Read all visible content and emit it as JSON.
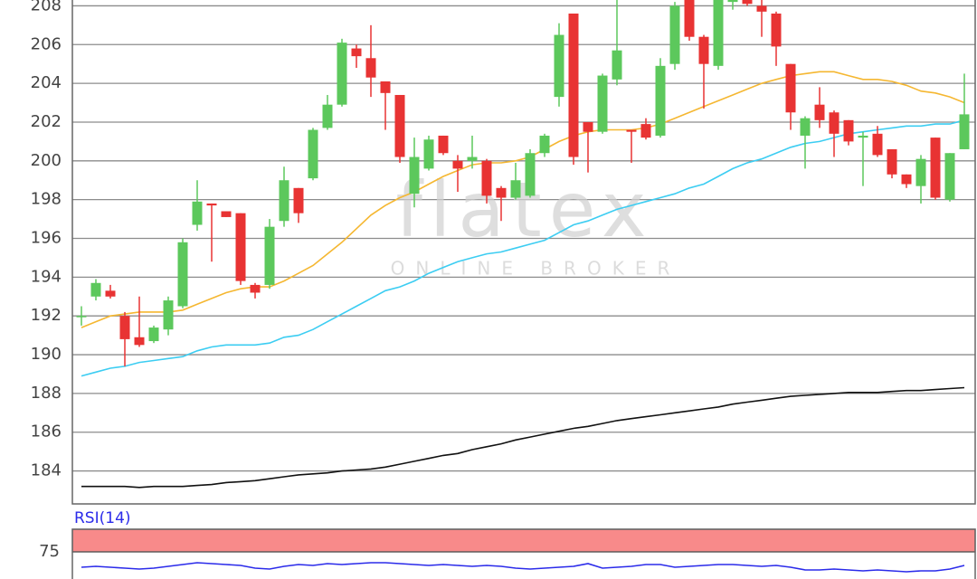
{
  "chart_data": [
    {
      "type": "candlestick",
      "watermark": {
        "brand": "flatex",
        "tagline": "ONLINE BROKER"
      },
      "categories": [
        null,
        null,
        null,
        null,
        null,
        null,
        null,
        null,
        null,
        null,
        null,
        null,
        null,
        null,
        null,
        null,
        null,
        null,
        null,
        null,
        null,
        null,
        null,
        null,
        null,
        null,
        null,
        null,
        null,
        null,
        null,
        null,
        null,
        null,
        null,
        null,
        null,
        null,
        null,
        null,
        null,
        null,
        null,
        null,
        null,
        null,
        null,
        null,
        null,
        null,
        null,
        null,
        null,
        null,
        null,
        null,
        null,
        null,
        null,
        null,
        null,
        null
      ],
      "open": [
        192,
        193,
        193.3,
        192,
        190.9,
        190.7,
        191.3,
        192.5,
        196.7,
        197.8,
        197.4,
        197.3,
        193.6,
        193.6,
        196.9,
        198.6,
        199.1,
        201.7,
        202.9,
        205.8,
        205.3,
        204.1,
        203.4,
        198.3,
        199.6,
        201.3,
        200,
        200,
        200,
        198.6,
        198.1,
        198.2,
        200.4,
        203.3,
        207.6,
        202,
        201.5,
        204.2,
        201.6,
        201.9,
        201.3,
        205,
        208.3,
        206.4,
        204.9,
        208.2,
        208.3,
        208,
        207.6,
        205,
        201.3,
        202.9,
        202.5,
        202.1,
        201.2,
        201.4,
        200.6,
        199.3,
        198.7,
        201.2,
        198,
        200.6
      ],
      "high": [
        192.5,
        193.9,
        193.6,
        192.2,
        193,
        191.5,
        193,
        196,
        199,
        197.8,
        197.4,
        197.3,
        193.7,
        197,
        199.7,
        198.6,
        201.7,
        203.4,
        206.3,
        206,
        207,
        204.1,
        203.4,
        201.2,
        201.3,
        201.3,
        200.3,
        201.3,
        200.1,
        198.7,
        199.9,
        200.6,
        201.4,
        207.1,
        207.6,
        202,
        204.5,
        208.3,
        201.6,
        202.2,
        205.3,
        208.2,
        208.3,
        206.5,
        208.3,
        208.3,
        208.3,
        208.3,
        207.7,
        205,
        202.3,
        203.8,
        202.6,
        202.1,
        201.5,
        201.8,
        200.6,
        199.3,
        200.3,
        201.2,
        200.4,
        204.5
      ],
      "low": [
        191.5,
        192.8,
        192.9,
        189.4,
        190.4,
        190.6,
        191,
        192.4,
        196.4,
        194.8,
        197.1,
        193.6,
        192.9,
        193.4,
        196.6,
        196.8,
        199,
        201.6,
        202.8,
        204.8,
        203.3,
        201.6,
        199.9,
        197.6,
        199.5,
        200.3,
        198.4,
        199.6,
        197.8,
        196.9,
        198,
        198.1,
        200.2,
        202.8,
        199.8,
        199.4,
        201.4,
        203.9,
        199.9,
        201.1,
        201.2,
        204.7,
        206.2,
        202.7,
        204.7,
        207.8,
        208,
        206.4,
        204.9,
        201.6,
        199.6,
        201.7,
        200.2,
        200.8,
        198.7,
        200.2,
        199.1,
        198.6,
        197.8,
        198,
        197.9,
        200.6
      ],
      "close": [
        192,
        193.7,
        193,
        190.8,
        190.5,
        191.4,
        192.8,
        195.8,
        197.9,
        197.7,
        197.1,
        193.8,
        193.2,
        196.6,
        199,
        197.3,
        201.6,
        202.9,
        206.1,
        205.4,
        204.3,
        203.5,
        200.2,
        200.2,
        201.1,
        200.4,
        199.6,
        200.2,
        198.2,
        198.1,
        199,
        200.4,
        201.3,
        206.5,
        200.2,
        201.5,
        204.4,
        205.7,
        201.5,
        201.2,
        204.9,
        208,
        206.4,
        205,
        208.3,
        208.3,
        208.1,
        207.7,
        205.9,
        202.5,
        202.2,
        202.1,
        201.4,
        201,
        201.3,
        200.3,
        199.3,
        198.8,
        200.1,
        198.1,
        200.4,
        202.4
      ],
      "up_color": "#5cc85c",
      "down_color": "#e83333",
      "overlays": [
        {
          "color": "#f5b731",
          "values": [
            191.4,
            191.7,
            192,
            192.1,
            192.2,
            192.2,
            192.2,
            192.3,
            192.6,
            192.9,
            193.2,
            193.4,
            193.5,
            193.5,
            193.8,
            194.2,
            194.6,
            195.2,
            195.8,
            196.5,
            197.2,
            197.7,
            198.1,
            198.4,
            198.8,
            199.2,
            199.5,
            199.8,
            199.9,
            199.9,
            200,
            200.2,
            200.6,
            201,
            201.3,
            201.5,
            201.6,
            201.6,
            201.6,
            201.7,
            201.9,
            202.2,
            202.5,
            202.8,
            203.1,
            203.4,
            203.7,
            204,
            204.2,
            204.4,
            204.5,
            204.6,
            204.6,
            204.4,
            204.2,
            204.2,
            204.1,
            203.9,
            203.6,
            203.5,
            203.3,
            203
          ]
        },
        {
          "color": "#3ccdf2",
          "values": [
            188.9,
            189.1,
            189.3,
            189.4,
            189.6,
            189.7,
            189.8,
            189.9,
            190.2,
            190.4,
            190.5,
            190.5,
            190.5,
            190.6,
            190.9,
            191,
            191.3,
            191.7,
            192.1,
            192.5,
            192.9,
            193.3,
            193.5,
            193.8,
            194.2,
            194.5,
            194.8,
            195,
            195.2,
            195.3,
            195.5,
            195.7,
            195.9,
            196.3,
            196.7,
            196.9,
            197.2,
            197.5,
            197.7,
            197.9,
            198.1,
            198.3,
            198.6,
            198.8,
            199.2,
            199.6,
            199.9,
            200.1,
            200.4,
            200.7,
            200.9,
            201,
            201.2,
            201.4,
            201.5,
            201.6,
            201.7,
            201.8,
            201.8,
            201.9,
            201.9,
            202.1
          ]
        },
        {
          "color": "#111111",
          "values": [
            183.2,
            183.2,
            183.2,
            183.2,
            183.15,
            183.2,
            183.2,
            183.2,
            183.25,
            183.3,
            183.4,
            183.45,
            183.5,
            183.6,
            183.7,
            183.8,
            183.85,
            183.9,
            184,
            184.05,
            184.1,
            184.2,
            184.35,
            184.5,
            184.65,
            184.8,
            184.9,
            185.1,
            185.25,
            185.4,
            185.6,
            185.75,
            185.9,
            186.05,
            186.2,
            186.3,
            186.45,
            186.6,
            186.7,
            186.8,
            186.9,
            187,
            187.1,
            187.2,
            187.3,
            187.45,
            187.55,
            187.65,
            187.75,
            187.85,
            187.9,
            187.95,
            188,
            188.05,
            188.05,
            188.05,
            188.1,
            188.15,
            188.15,
            188.2,
            188.25,
            188.3
          ]
        }
      ],
      "ylim": [
        182.3,
        208.3
      ],
      "yticks": [
        184,
        186,
        188,
        190,
        192,
        194,
        196,
        198,
        200,
        202,
        204,
        206,
        208
      ],
      "grid": true
    },
    {
      "type": "line",
      "title": "RSI(14)",
      "color": "#2b2bea",
      "values": [
        58,
        59,
        58,
        57,
        56,
        57,
        59,
        61,
        63,
        62,
        61,
        60,
        57,
        56,
        59,
        61,
        60,
        62,
        61,
        62,
        63,
        63,
        62,
        61,
        60,
        61,
        60,
        59,
        60,
        59,
        57,
        56,
        57,
        58,
        59,
        62,
        57,
        58,
        59,
        61,
        61,
        58,
        59,
        60,
        61,
        61,
        60,
        59,
        60,
        58,
        55,
        55,
        56,
        55,
        54,
        55,
        54,
        53,
        54,
        54,
        56,
        60
      ],
      "ylim": [
        45,
        100
      ],
      "yticks": [
        75
      ],
      "zone": [
        75,
        100
      ],
      "zone_color": "#f88a8a"
    }
  ]
}
